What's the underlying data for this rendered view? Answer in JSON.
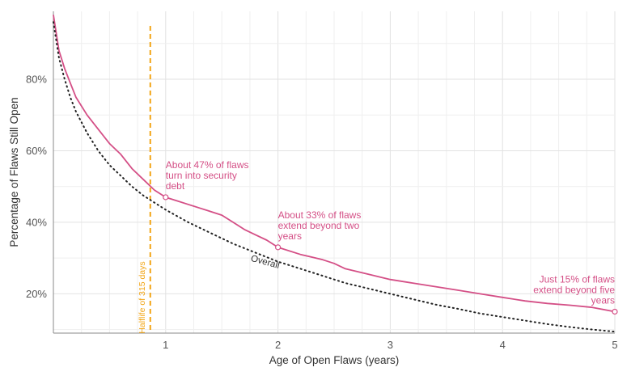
{
  "chart_data": {
    "type": "line",
    "xlabel": "Age of Open Flaws (years)",
    "ylabel": "Percentage of Flaws Still Open",
    "xlim": [
      0,
      5
    ],
    "ylim": [
      9,
      99
    ],
    "x_ticks": [
      {
        "value": 1,
        "label": "1"
      },
      {
        "value": 2,
        "label": "2"
      },
      {
        "value": 3,
        "label": "3"
      },
      {
        "value": 4,
        "label": "4"
      },
      {
        "value": 5,
        "label": "5"
      }
    ],
    "y_ticks": [
      {
        "value": 20,
        "label": "20%"
      },
      {
        "value": 40,
        "label": "40%"
      },
      {
        "value": 60,
        "label": "60%"
      },
      {
        "value": 80,
        "label": "80%"
      }
    ],
    "grid": true,
    "series": [
      {
        "name": "",
        "color": "#d44f86",
        "style": "solid",
        "points": [
          [
            0.0,
            98
          ],
          [
            0.05,
            88
          ],
          [
            0.1,
            83
          ],
          [
            0.15,
            79
          ],
          [
            0.2,
            75
          ],
          [
            0.3,
            70
          ],
          [
            0.4,
            66
          ],
          [
            0.5,
            62
          ],
          [
            0.6,
            59
          ],
          [
            0.7,
            55
          ],
          [
            0.8,
            52
          ],
          [
            0.9,
            49
          ],
          [
            1.0,
            47
          ],
          [
            1.1,
            46
          ],
          [
            1.2,
            45
          ],
          [
            1.3,
            44
          ],
          [
            1.4,
            43
          ],
          [
            1.5,
            42
          ],
          [
            1.6,
            40
          ],
          [
            1.7,
            38
          ],
          [
            1.8,
            36.5
          ],
          [
            1.9,
            35
          ],
          [
            2.0,
            33
          ],
          [
            2.2,
            31
          ],
          [
            2.4,
            29.5
          ],
          [
            2.5,
            28.5
          ],
          [
            2.6,
            27
          ],
          [
            2.8,
            25.5
          ],
          [
            3.0,
            24
          ],
          [
            3.2,
            23
          ],
          [
            3.4,
            22
          ],
          [
            3.6,
            21
          ],
          [
            3.8,
            20
          ],
          [
            4.0,
            19
          ],
          [
            4.2,
            18
          ],
          [
            4.4,
            17.3
          ],
          [
            4.6,
            16.8
          ],
          [
            4.8,
            16.2
          ],
          [
            5.0,
            15
          ]
        ]
      },
      {
        "name": "Overall",
        "color": "#222222",
        "style": "dotted",
        "points": [
          [
            0.0,
            96
          ],
          [
            0.05,
            86
          ],
          [
            0.1,
            80
          ],
          [
            0.15,
            75
          ],
          [
            0.2,
            71
          ],
          [
            0.3,
            65
          ],
          [
            0.4,
            60
          ],
          [
            0.5,
            56
          ],
          [
            0.6,
            53
          ],
          [
            0.7,
            50
          ],
          [
            0.8,
            47.5
          ],
          [
            0.9,
            45.5
          ],
          [
            1.0,
            43.5
          ],
          [
            1.2,
            40
          ],
          [
            1.4,
            37
          ],
          [
            1.6,
            34
          ],
          [
            1.8,
            31.5
          ],
          [
            2.0,
            29
          ],
          [
            2.2,
            27
          ],
          [
            2.4,
            25
          ],
          [
            2.6,
            23
          ],
          [
            2.8,
            21.5
          ],
          [
            3.0,
            20
          ],
          [
            3.2,
            18.5
          ],
          [
            3.4,
            17
          ],
          [
            3.6,
            15.8
          ],
          [
            3.8,
            14.5
          ],
          [
            4.0,
            13.5
          ],
          [
            4.2,
            12.5
          ],
          [
            4.4,
            11.5
          ],
          [
            4.6,
            10.7
          ],
          [
            4.8,
            10
          ],
          [
            5.0,
            9.4
          ]
        ]
      }
    ],
    "markers": [
      {
        "x": 1.0,
        "y": 47
      },
      {
        "x": 2.0,
        "y": 33
      },
      {
        "x": 5.0,
        "y": 15
      }
    ],
    "reference_line": {
      "x": 0.863,
      "color": "#f2a516",
      "label": "Halflife of 315 days"
    },
    "annotations": [
      {
        "lines": [
          "About 47% of flaws",
          "turn into security",
          "debt"
        ],
        "x": 1.0,
        "y": 47,
        "anchor": "start"
      },
      {
        "lines": [
          "About 33% of flaws",
          "extend beyond two",
          "years"
        ],
        "x": 2.0,
        "y": 33,
        "anchor": "start"
      },
      {
        "lines": [
          "Just 15% of flaws",
          "extend beyond five",
          "years"
        ],
        "x": 5.0,
        "y": 15,
        "anchor": "end"
      }
    ],
    "overall_label": "Overall"
  }
}
